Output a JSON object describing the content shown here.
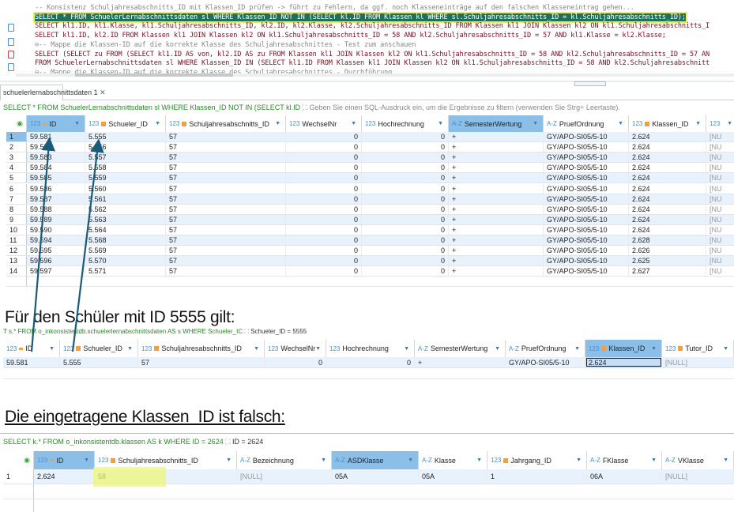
{
  "editor": {
    "lines": [
      {
        "type": "comment",
        "text": "-- Konsistenz Schuljahresabschnitts_ID mit Klassen_ID prüfen -> führt zu Fehlern, da ggf. noch Klasseneinträge auf den falschen Klasseneintrag gehen..."
      },
      {
        "type": "highlight",
        "text": "SELECT * FROM SchuelerLernabschnittsdaten sl WHERE Klassen_ID NOT IN (SELECT kl.ID FROM Klassen kl WHERE sl.Schuljahresabschnitts_ID = kl.Schuljahresabschnitts_ID);"
      },
      {
        "type": "code",
        "text": "SELECT kl1.ID, kl1.Klasse, kl1.Schuljahresabschnitts_ID, kl2.ID, kl2.Klasse, kl2.Schuljahresabschnitts_ID FROM Klassen kl1 JOIN Klassen kl2 ON kl1.Schuljahresabschnitts_I"
      },
      {
        "type": "code",
        "text": "SELECT kl1.ID, kl2.ID FROM Klassen kl1 JOIN Klassen kl2 ON kl1.Schuljahresabschnitts_ID = 58 AND kl2.Schuljahresabschnitts_ID = 57 AND kl1.Klasse = kl2.Klasse;"
      },
      {
        "type": "comment",
        "text": "⊖-- Mappe die Klassen-ID auf die korrekte Klasse des Schuljahresabschnittes - Test zum anschauen"
      },
      {
        "type": "code",
        "text": "SELECT (SELECT zu FROM (SELECT kl1.ID AS von, kl2.ID AS zu FROM Klassen kl1 JOIN Klassen kl2 ON kl1.Schuljahresabschnitts_ID = 58 AND kl2.Schuljahresabschnitts_ID = 57 AN"
      },
      {
        "type": "code",
        "text": "FROM SchuelerLernabschnittsdaten sl WHERE Klassen_ID IN (SELECT kl1.ID FROM Klassen kl1 JOIN Klassen kl2 ON kl1.Schuljahresabschnitts_ID = 58 AND kl2.Schuljahresabschnitt"
      },
      {
        "type": "comment",
        "text": "⊖-- Mappe die Klassen-ID auf die korrekte Klasse des Schuljahresabschnittes - Durchführung"
      }
    ]
  },
  "results_tab": {
    "label": "schuelerlernabschnittsdaten 1",
    "close": "✕"
  },
  "grid1": {
    "query": "SELECT * FROM SchuelerLernabschnittsdaten sl WHERE Klassen_ID NOT IN (SELECT kl.ID",
    "filter_placeholder": "Geben Sie einen SQL-Ausdruck ein, um die Ergebnisse zu filtern (verwenden Sie Strg+ Leertaste).",
    "columns": [
      {
        "name": "ID",
        "type": "123",
        "key": "pk",
        "selected": true
      },
      {
        "name": "Schueler_ID",
        "type": "123",
        "key": "fk"
      },
      {
        "name": "Schuljahresabschnitts_ID",
        "type": "123",
        "key": "fk"
      },
      {
        "name": "WechselNr",
        "type": "123"
      },
      {
        "name": "Hochrechnung",
        "type": "123"
      },
      {
        "name": "SemesterWertung",
        "type": "A-Z",
        "selected": true
      },
      {
        "name": "PruefOrdnung",
        "type": "A-Z"
      },
      {
        "name": "Klassen_ID",
        "type": "123",
        "key": "fk"
      },
      {
        "name": "",
        "type": "123"
      }
    ],
    "rows": [
      [
        "1",
        "59.581",
        "5.555",
        "57",
        "0",
        "0",
        "+",
        "GY/APO-SI05/5-10",
        "2.624",
        "[NU"
      ],
      [
        "2",
        "59.582",
        "5.556",
        "57",
        "0",
        "0",
        "+",
        "GY/APO-SI05/5-10",
        "2.624",
        "[NU"
      ],
      [
        "3",
        "59.583",
        "5.557",
        "57",
        "0",
        "0",
        "+",
        "GY/APO-SI05/5-10",
        "2.624",
        "[NU"
      ],
      [
        "4",
        "59.584",
        "5.558",
        "57",
        "0",
        "0",
        "+",
        "GY/APO-SI05/5-10",
        "2.624",
        "[NU"
      ],
      [
        "5",
        "59.585",
        "5.559",
        "57",
        "0",
        "0",
        "+",
        "GY/APO-SI05/5-10",
        "2.624",
        "[NU"
      ],
      [
        "6",
        "59.586",
        "5.560",
        "57",
        "0",
        "0",
        "+",
        "GY/APO-SI05/5-10",
        "2.624",
        "[NU"
      ],
      [
        "7",
        "59.587",
        "5.561",
        "57",
        "0",
        "0",
        "+",
        "GY/APO-SI05/5-10",
        "2.624",
        "[NU"
      ],
      [
        "8",
        "59.588",
        "5.562",
        "57",
        "0",
        "0",
        "+",
        "GY/APO-SI05/5-10",
        "2.624",
        "[NU"
      ],
      [
        "9",
        "59.589",
        "5.563",
        "57",
        "0",
        "0",
        "+",
        "GY/APO-SI05/5-10",
        "2.624",
        "[NU"
      ],
      [
        "10",
        "59.590",
        "5.564",
        "57",
        "0",
        "0",
        "+",
        "GY/APO-SI05/5-10",
        "2.624",
        "[NU"
      ],
      [
        "11",
        "59.594",
        "5.568",
        "57",
        "0",
        "0",
        "+",
        "GY/APO-SI05/5-10",
        "2.628",
        "[NU"
      ],
      [
        "12",
        "59.595",
        "5.569",
        "57",
        "0",
        "0",
        "+",
        "GY/APO-SI05/5-10",
        "2.626",
        "[NU"
      ],
      [
        "13",
        "59.596",
        "5.570",
        "57",
        "0",
        "0",
        "+",
        "GY/APO-SI05/5-10",
        "2.625",
        "[NU"
      ],
      [
        "14",
        "59.597",
        "5.571",
        "57",
        "0",
        "0",
        "+",
        "GY/APO-SI05/5-10",
        "2.627",
        "[NU"
      ]
    ]
  },
  "heading1": "Für den Schüler mit ID 5555 gilt:",
  "grid2": {
    "query": "T s.* FROM o_inkonsistentdb.schuelerlernabschnittsdaten AS s WHERE Schueler_IC",
    "filter": "Schueler_ID = 5555",
    "columns": [
      {
        "name": "ID",
        "type": "123",
        "key": "pk"
      },
      {
        "name": "Schueler_ID",
        "type": "123",
        "key": "fk"
      },
      {
        "name": "Schuljahresabschnitts_ID",
        "type": "123",
        "key": "fk"
      },
      {
        "name": "WechselNr",
        "type": "123"
      },
      {
        "name": "Hochrechnung",
        "type": "123"
      },
      {
        "name": "SemesterWertung",
        "type": "A-Z"
      },
      {
        "name": "PruefOrdnung",
        "type": "A-Z"
      },
      {
        "name": "Klassen_ID",
        "type": "123",
        "key": "fk",
        "selected": true
      },
      {
        "name": "Tutor_ID",
        "type": "123",
        "key": "fk"
      }
    ],
    "rows": [
      [
        "59.581",
        "5.555",
        "57",
        "0",
        "0",
        "+",
        "GY/APO-SI05/5-10",
        "2.624",
        "[NULL]"
      ]
    ]
  },
  "heading2": "Die eingetragene Klassen_ID ist falsch:",
  "grid3": {
    "query": "SELECT k.* FROM o_inkonsistentdb.klassen AS k WHERE ID = 2624",
    "filter": "ID = 2624",
    "columns": [
      {
        "name": "ID",
        "type": "123",
        "key": "pk",
        "selected": true
      },
      {
        "name": "Schuljahresabschnitts_ID",
        "type": "123",
        "key": "fk"
      },
      {
        "name": "Bezeichnung",
        "type": "A-Z"
      },
      {
        "name": "ASDKlasse",
        "type": "A-Z",
        "selected": true
      },
      {
        "name": "Klasse",
        "type": "A-Z"
      },
      {
        "name": "Jahrgang_ID",
        "type": "123",
        "key": "fk"
      },
      {
        "name": "FKlasse",
        "type": "A-Z"
      },
      {
        "name": "VKlasse",
        "type": "A-Z"
      }
    ],
    "rows": [
      [
        "1",
        "2.624",
        "58",
        "[NULL]",
        "05A",
        "05A",
        "1",
        "06A",
        "[NULL]"
      ]
    ]
  },
  "colors": {
    "selected_header": "#8cbfe8",
    "row_alt": "#e8f2fc",
    "highlight_marker": "#eef57a",
    "arrow": "#1a5a7a",
    "query_text": "#2a8a2a"
  }
}
